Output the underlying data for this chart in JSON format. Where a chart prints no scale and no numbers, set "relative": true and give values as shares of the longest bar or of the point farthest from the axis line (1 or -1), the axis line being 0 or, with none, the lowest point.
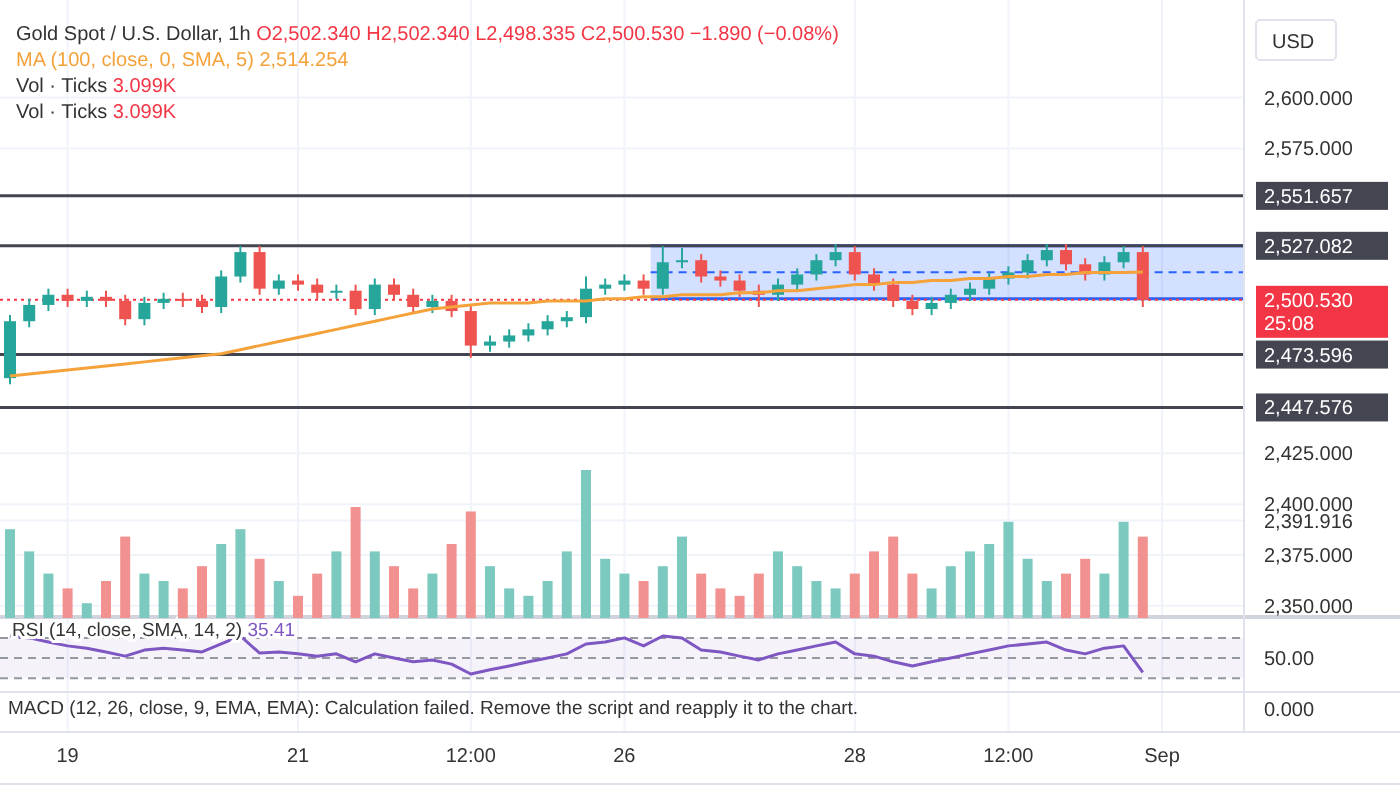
{
  "chart_data": [
    {
      "type": "candlestick",
      "title": "Gold Spot / U.S. Dollar, 1h",
      "ylabel": "USD",
      "categories": [
        null,
        null,
        null,
        "19",
        null,
        null,
        null,
        null,
        null,
        null,
        null,
        null,
        null,
        null,
        null,
        "21",
        null,
        null,
        null,
        null,
        null,
        null,
        null,
        null,
        "12:00",
        null,
        null,
        null,
        null,
        null,
        null,
        null,
        "26",
        null,
        null,
        null,
        null,
        null,
        null,
        null,
        null,
        null,
        null,
        null,
        "28",
        null,
        null,
        null,
        null,
        null,
        null,
        null,
        "12:00",
        null,
        null,
        null,
        null,
        null,
        null,
        null,
        "Sep"
      ],
      "ohlc": [
        [
          2462,
          2493,
          2459,
          2490
        ],
        [
          2490,
          2501,
          2487,
          2498
        ],
        [
          2498,
          2506,
          2495,
          2503
        ],
        [
          2503,
          2506,
          2497,
          2500
        ],
        [
          2500,
          2505,
          2497,
          2502
        ],
        [
          2502,
          2505,
          2497,
          2500
        ],
        [
          2500,
          2503,
          2488,
          2491
        ],
        [
          2491,
          2502,
          2488,
          2499
        ],
        [
          2499,
          2504,
          2496,
          2501
        ],
        [
          2501,
          2504,
          2497,
          2500
        ],
        [
          2500,
          2503,
          2494,
          2497
        ],
        [
          2497,
          2515,
          2494,
          2512
        ],
        [
          2512,
          2527,
          2509,
          2524
        ],
        [
          2524,
          2527,
          2503,
          2506
        ],
        [
          2506,
          2513,
          2503,
          2510
        ],
        [
          2510,
          2513,
          2505,
          2508
        ],
        [
          2508,
          2511,
          2501,
          2504
        ],
        [
          2504,
          2508,
          2501,
          2505
        ],
        [
          2505,
          2508,
          2493,
          2496
        ],
        [
          2496,
          2511,
          2493,
          2508
        ],
        [
          2508,
          2511,
          2500,
          2503
        ],
        [
          2503,
          2506,
          2494,
          2497
        ],
        [
          2497,
          2503,
          2494,
          2500
        ],
        [
          2500,
          2503,
          2492,
          2495
        ],
        [
          2495,
          2498,
          2472,
          2478
        ],
        [
          2478,
          2483,
          2475,
          2480
        ],
        [
          2480,
          2486,
          2477,
          2483
        ],
        [
          2483,
          2489,
          2480,
          2486
        ],
        [
          2486,
          2493,
          2483,
          2490
        ],
        [
          2490,
          2495,
          2487,
          2492
        ],
        [
          2492,
          2512,
          2489,
          2506
        ],
        [
          2506,
          2511,
          2503,
          2508
        ],
        [
          2508,
          2513,
          2505,
          2510
        ],
        [
          2510,
          2513,
          2503,
          2506
        ],
        [
          2506,
          2527,
          2503,
          2519
        ],
        [
          2519,
          2526,
          2516,
          2520
        ],
        [
          2520,
          2523,
          2509,
          2512
        ],
        [
          2512,
          2515,
          2507,
          2510
        ],
        [
          2510,
          2513,
          2502,
          2505
        ],
        [
          2505,
          2508,
          2497,
          2503
        ],
        [
          2503,
          2511,
          2500,
          2508
        ],
        [
          2508,
          2516,
          2505,
          2513
        ],
        [
          2513,
          2523,
          2510,
          2520
        ],
        [
          2520,
          2528,
          2517,
          2524
        ],
        [
          2524,
          2527,
          2510,
          2513
        ],
        [
          2513,
          2516,
          2505,
          2508
        ],
        [
          2508,
          2511,
          2497,
          2500
        ],
        [
          2500,
          2503,
          2493,
          2496
        ],
        [
          2496,
          2502,
          2493,
          2499
        ],
        [
          2499,
          2506,
          2496,
          2503
        ],
        [
          2503,
          2509,
          2500,
          2506
        ],
        [
          2506,
          2514,
          2503,
          2511
        ],
        [
          2511,
          2517,
          2508,
          2514
        ],
        [
          2514,
          2523,
          2511,
          2520
        ],
        [
          2520,
          2528,
          2517,
          2525
        ],
        [
          2525,
          2528,
          2515,
          2518
        ],
        [
          2518,
          2521,
          2510,
          2513
        ],
        [
          2513,
          2522,
          2510,
          2519
        ],
        [
          2519,
          2527,
          2516,
          2524
        ],
        [
          2524,
          2527,
          2497,
          2500.53
        ],
        null
      ],
      "colors": [
        "#26a69a",
        "#26a69a",
        "#26a69a",
        "#ef5350",
        "#26a69a",
        "#ef5350",
        "#ef5350",
        "#26a69a",
        "#26a69a",
        "#ef5350",
        "#ef5350",
        "#26a69a",
        "#26a69a",
        "#ef5350",
        "#26a69a",
        "#ef5350",
        "#ef5350",
        "#26a69a",
        "#ef5350",
        "#26a69a",
        "#ef5350",
        "#ef5350",
        "#26a69a",
        "#ef5350",
        "#ef5350",
        "#26a69a",
        "#26a69a",
        "#26a69a",
        "#26a69a",
        "#26a69a",
        "#26a69a",
        "#26a69a",
        "#26a69a",
        "#ef5350",
        "#26a69a",
        "#26a69a",
        "#ef5350",
        "#ef5350",
        "#ef5350",
        "#ef5350",
        "#26a69a",
        "#26a69a",
        "#26a69a",
        "#26a69a",
        "#ef5350",
        "#ef5350",
        "#ef5350",
        "#ef5350",
        "#26a69a",
        "#26a69a",
        "#26a69a",
        "#26a69a",
        "#26a69a",
        "#26a69a",
        "#26a69a",
        "#ef5350",
        "#ef5350",
        "#26a69a",
        "#26a69a",
        "#ef5350",
        "#ef5350"
      ],
      "series": [
        {
          "type": "line",
          "name": "MA (100, close, 0, SMA, 5)",
          "color": "#f5a23a",
          "values": [
            2463,
            2464,
            2465,
            2466,
            2467,
            2468,
            2469,
            2470,
            2471,
            2472,
            2473,
            2474,
            2476,
            2478,
            2480,
            2482,
            2484,
            2486,
            2488,
            2490,
            2492,
            2494,
            2496,
            2497,
            2498,
            2499,
            2499,
            2499,
            2500,
            2500,
            2500,
            2501,
            2501,
            2502,
            2502,
            2503,
            2503,
            2503,
            2504,
            2504,
            2505,
            2505,
            2506,
            2507,
            2508,
            2508,
            2509,
            2509,
            2510,
            2510,
            2511,
            2511,
            2512,
            2512,
            2513,
            2513,
            2514,
            2514,
            2514,
            2514.254,
            null
          ]
        }
      ],
      "annotations": [
        "O2,502.340 H2,502.340 L2,498.335 C2,500.530 −1.890 (−0.08%)",
        "2,514.254",
        "Vol · Ticks 3.099K",
        "Vol · Ticks 3.099K",
        "25:08"
      ],
      "ylim": [
        2345,
        2648
      ],
      "yticks": [
        {
          "value": 2600,
          "label": "2,600.000"
        },
        {
          "value": 2575,
          "label": "2,575.000"
        },
        {
          "value": 2425,
          "label": "2,425.000"
        },
        {
          "value": 2400,
          "label": "2,400.000"
        },
        {
          "value": 2391.916,
          "label": "2,391.916"
        },
        {
          "value": 2375,
          "label": "2,375.000"
        },
        {
          "value": 2350,
          "label": "2,350.000"
        }
      ],
      "ref_lines": [
        {
          "axis": "y",
          "value": 2551.657,
          "label": "2,551.657",
          "color": "#434651"
        },
        {
          "axis": "y",
          "value": 2527.082,
          "label": "2,527.082",
          "color": "#434651"
        },
        {
          "axis": "y",
          "value": 2473.596,
          "label": "2,473.596",
          "color": "#434651"
        },
        {
          "axis": "y",
          "value": 2447.576,
          "label": "2,447.576",
          "color": "#434651"
        },
        {
          "axis": "y",
          "value": 2500.53,
          "label": "2,500.530",
          "color": "#f23645",
          "line_style": "dotted"
        }
      ],
      "bands": [
        {
          "axis": "y",
          "from": 2501,
          "to": 2527.082,
          "color": "#2962ff"
        }
      ],
      "grid": true,
      "legend": "top"
    },
    {
      "type": "bar",
      "relative": true,
      "categories": [
        null,
        null,
        null,
        null,
        null,
        null,
        null,
        null,
        null,
        null,
        null,
        null,
        null,
        null,
        null,
        null,
        null,
        null,
        null,
        null,
        null,
        null,
        null,
        null,
        null,
        null,
        null,
        null,
        null,
        null,
        null,
        null,
        null,
        null,
        null,
        null,
        null,
        null,
        null,
        null,
        null,
        null,
        null,
        null,
        null,
        null,
        null,
        null,
        null,
        null,
        null,
        null,
        null,
        null,
        null,
        null,
        null,
        null,
        null,
        null,
        null
      ],
      "values": [
        0.6,
        0.45,
        0.3,
        0.2,
        0.1,
        0.25,
        0.55,
        0.3,
        0.25,
        0.2,
        0.35,
        0.5,
        0.6,
        0.4,
        0.25,
        0.15,
        0.3,
        0.45,
        0.75,
        0.45,
        0.35,
        0.2,
        0.3,
        0.5,
        0.72,
        0.35,
        0.2,
        0.15,
        0.25,
        0.45,
        1.0,
        0.4,
        0.3,
        0.25,
        0.35,
        0.55,
        0.3,
        0.2,
        0.15,
        0.3,
        0.45,
        0.35,
        0.25,
        0.2,
        0.3,
        0.45,
        0.55,
        0.3,
        0.2,
        0.35,
        0.45,
        0.5,
        0.65,
        0.4,
        0.25,
        0.3,
        0.4,
        0.3,
        0.65,
        0.55,
        null
      ],
      "colors": [
        "#7cc9c0",
        "#7cc9c0",
        "#7cc9c0",
        "#f29290",
        "#7cc9c0",
        "#f29290",
        "#f29290",
        "#7cc9c0",
        "#7cc9c0",
        "#f29290",
        "#f29290",
        "#7cc9c0",
        "#7cc9c0",
        "#f29290",
        "#7cc9c0",
        "#f29290",
        "#f29290",
        "#7cc9c0",
        "#f29290",
        "#7cc9c0",
        "#f29290",
        "#f29290",
        "#7cc9c0",
        "#f29290",
        "#f29290",
        "#7cc9c0",
        "#7cc9c0",
        "#7cc9c0",
        "#7cc9c0",
        "#7cc9c0",
        "#7cc9c0",
        "#7cc9c0",
        "#7cc9c0",
        "#f29290",
        "#7cc9c0",
        "#7cc9c0",
        "#f29290",
        "#f29290",
        "#f29290",
        "#f29290",
        "#7cc9c0",
        "#7cc9c0",
        "#7cc9c0",
        "#7cc9c0",
        "#f29290",
        "#f29290",
        "#f29290",
        "#f29290",
        "#7cc9c0",
        "#7cc9c0",
        "#7cc9c0",
        "#7cc9c0",
        "#7cc9c0",
        "#7cc9c0",
        "#7cc9c0",
        "#f29290",
        "#f29290",
        "#7cc9c0",
        "#7cc9c0",
        "#f29290",
        "#f29290"
      ]
    },
    {
      "type": "line",
      "relative": true,
      "title": "RSI (14, close, SMA, 14, 2)",
      "annotations": [
        "35.41",
        "50.00"
      ],
      "categories": [
        null,
        null,
        null,
        null,
        null,
        null,
        null,
        null,
        null,
        null,
        null,
        null,
        null,
        null,
        null,
        null,
        null,
        null,
        null,
        null,
        null,
        null,
        null,
        null,
        null,
        null,
        null,
        null,
        null,
        null,
        null,
        null,
        null,
        null,
        null,
        null,
        null,
        null,
        null,
        null,
        null,
        null,
        null,
        null,
        null,
        null,
        null,
        null,
        null,
        null,
        null,
        null,
        null,
        null,
        null,
        null,
        null,
        null,
        null,
        null,
        null
      ],
      "series": [
        {
          "color": "#7e57c2",
          "values": [
            1,
            0.95,
            0.84,
            0.74,
            0.68,
            0.58,
            0.47,
            0.63,
            0.68,
            0.63,
            0.58,
            0.79,
            1,
            0.55,
            0.58,
            0.53,
            0.47,
            0.53,
            0.32,
            0.53,
            0.42,
            0.32,
            0.37,
            0.26,
            0,
            0.11,
            0.21,
            0.32,
            0.42,
            0.53,
            0.79,
            0.84,
            0.95,
            0.74,
            1,
            0.95,
            0.63,
            0.58,
            0.47,
            0.37,
            0.53,
            0.63,
            0.74,
            0.84,
            0.53,
            0.47,
            0.32,
            0.21,
            0.32,
            0.42,
            0.53,
            0.63,
            0.74,
            0.79,
            0.84,
            0.63,
            0.53,
            0.68,
            0.74,
            0.04,
            null
          ]
        }
      ],
      "ref_lines": [
        {
          "axis": "y",
          "value": 0.95,
          "color": "#9598a1",
          "line_style": "dashed"
        },
        {
          "axis": "y",
          "value": 0.42,
          "color": "#9598a1",
          "line_style": "dashed"
        },
        {
          "axis": "y",
          "value": -0.11,
          "color": "#9598a1",
          "line_style": "dashed"
        }
      ],
      "bands": [
        {
          "axis": "y",
          "from": -0.11,
          "to": 0.95,
          "color": "#7e57c2"
        }
      ]
    },
    {
      "type": "other",
      "title": "MACD (12, 26, close, 9, EMA, EMA): Calculation failed. Remove the script and reapply it to the chart.",
      "annotations": [
        "0.000"
      ]
    }
  ]
}
